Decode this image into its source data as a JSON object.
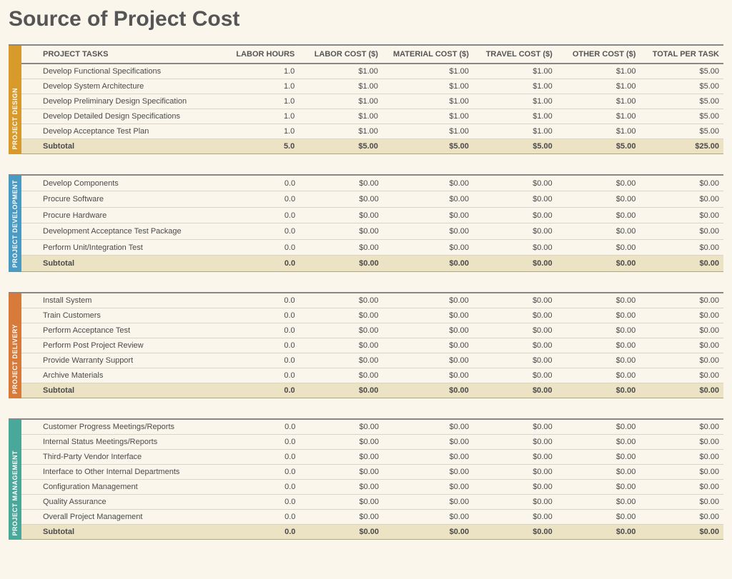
{
  "title": "Source of Project Cost",
  "columns": [
    "PROJECT TASKS",
    "LABOR HOURS",
    "LABOR COST ($)",
    "MATERIAL COST ($)",
    "TRAVEL COST ($)",
    "OTHER COST ($)",
    "TOTAL PER TASK"
  ],
  "colors": {
    "design": "#d89a2b",
    "development": "#4a9bc4",
    "delivery": "#d87a3a",
    "management": "#4aa89a",
    "background": "#faf6ec",
    "subtotal_bg": "#ece3c5",
    "header_border": "#888888",
    "row_border": "#d8d4c8"
  },
  "sections": [
    {
      "id": "design",
      "label": "PROJECT DESIGN",
      "rows": [
        {
          "task": "Develop Functional Specifications",
          "hours": "1.0",
          "labor": "$1.00",
          "material": "$1.00",
          "travel": "$1.00",
          "other": "$1.00",
          "total": "$5.00"
        },
        {
          "task": "Develop System Architecture",
          "hours": "1.0",
          "labor": "$1.00",
          "material": "$1.00",
          "travel": "$1.00",
          "other": "$1.00",
          "total": "$5.00"
        },
        {
          "task": "Develop Preliminary Design Specification",
          "hours": "1.0",
          "labor": "$1.00",
          "material": "$1.00",
          "travel": "$1.00",
          "other": "$1.00",
          "total": "$5.00"
        },
        {
          "task": "Develop Detailed Design Specifications",
          "hours": "1.0",
          "labor": "$1.00",
          "material": "$1.00",
          "travel": "$1.00",
          "other": "$1.00",
          "total": "$5.00"
        },
        {
          "task": "Develop Acceptance Test Plan",
          "hours": "1.0",
          "labor": "$1.00",
          "material": "$1.00",
          "travel": "$1.00",
          "other": "$1.00",
          "total": "$5.00"
        }
      ],
      "subtotal": {
        "task": "Subtotal",
        "hours": "5.0",
        "labor": "$5.00",
        "material": "$5.00",
        "travel": "$5.00",
        "other": "$5.00",
        "total": "$25.00"
      }
    },
    {
      "id": "development",
      "label": "PROJECT DEVELOPMENT",
      "rows": [
        {
          "task": "Develop Components",
          "hours": "0.0",
          "labor": "$0.00",
          "material": "$0.00",
          "travel": "$0.00",
          "other": "$0.00",
          "total": "$0.00"
        },
        {
          "task": "Procure Software",
          "hours": "0.0",
          "labor": "$0.00",
          "material": "$0.00",
          "travel": "$0.00",
          "other": "$0.00",
          "total": "$0.00"
        },
        {
          "task": "Procure Hardware",
          "hours": "0.0",
          "labor": "$0.00",
          "material": "$0.00",
          "travel": "$0.00",
          "other": "$0.00",
          "total": "$0.00"
        },
        {
          "task": "Development Acceptance Test Package",
          "hours": "0.0",
          "labor": "$0.00",
          "material": "$0.00",
          "travel": "$0.00",
          "other": "$0.00",
          "total": "$0.00"
        },
        {
          "task": "Perform Unit/Integration Test",
          "hours": "0.0",
          "labor": "$0.00",
          "material": "$0.00",
          "travel": "$0.00",
          "other": "$0.00",
          "total": "$0.00"
        }
      ],
      "subtotal": {
        "task": "Subtotal",
        "hours": "0.0",
        "labor": "$0.00",
        "material": "$0.00",
        "travel": "$0.00",
        "other": "$0.00",
        "total": "$0.00"
      }
    },
    {
      "id": "delivery",
      "label": "PROJECT DELIVERY",
      "rows": [
        {
          "task": "Install System",
          "hours": "0.0",
          "labor": "$0.00",
          "material": "$0.00",
          "travel": "$0.00",
          "other": "$0.00",
          "total": "$0.00"
        },
        {
          "task": "Train Customers",
          "hours": "0.0",
          "labor": "$0.00",
          "material": "$0.00",
          "travel": "$0.00",
          "other": "$0.00",
          "total": "$0.00"
        },
        {
          "task": "Perform Acceptance Test",
          "hours": "0.0",
          "labor": "$0.00",
          "material": "$0.00",
          "travel": "$0.00",
          "other": "$0.00",
          "total": "$0.00"
        },
        {
          "task": "Perform Post Project Review",
          "hours": "0.0",
          "labor": "$0.00",
          "material": "$0.00",
          "travel": "$0.00",
          "other": "$0.00",
          "total": "$0.00"
        },
        {
          "task": "Provide Warranty Support",
          "hours": "0.0",
          "labor": "$0.00",
          "material": "$0.00",
          "travel": "$0.00",
          "other": "$0.00",
          "total": "$0.00"
        },
        {
          "task": "Archive Materials",
          "hours": "0.0",
          "labor": "$0.00",
          "material": "$0.00",
          "travel": "$0.00",
          "other": "$0.00",
          "total": "$0.00"
        }
      ],
      "subtotal": {
        "task": "Subtotal",
        "hours": "0.0",
        "labor": "$0.00",
        "material": "$0.00",
        "travel": "$0.00",
        "other": "$0.00",
        "total": "$0.00"
      }
    },
    {
      "id": "management",
      "label": "PROJECT MANAGEMENT",
      "rows": [
        {
          "task": "Customer Progress Meetings/Reports",
          "hours": "0.0",
          "labor": "$0.00",
          "material": "$0.00",
          "travel": "$0.00",
          "other": "$0.00",
          "total": "$0.00"
        },
        {
          "task": "Internal Status Meetings/Reports",
          "hours": "0.0",
          "labor": "$0.00",
          "material": "$0.00",
          "travel": "$0.00",
          "other": "$0.00",
          "total": "$0.00"
        },
        {
          "task": "Third-Party Vendor Interface",
          "hours": "0.0",
          "labor": "$0.00",
          "material": "$0.00",
          "travel": "$0.00",
          "other": "$0.00",
          "total": "$0.00"
        },
        {
          "task": "Interface to Other Internal Departments",
          "hours": "0.0",
          "labor": "$0.00",
          "material": "$0.00",
          "travel": "$0.00",
          "other": "$0.00",
          "total": "$0.00"
        },
        {
          "task": "Configuration Management",
          "hours": "0.0",
          "labor": "$0.00",
          "material": "$0.00",
          "travel": "$0.00",
          "other": "$0.00",
          "total": "$0.00"
        },
        {
          "task": "Quality Assurance",
          "hours": "0.0",
          "labor": "$0.00",
          "material": "$0.00",
          "travel": "$0.00",
          "other": "$0.00",
          "total": "$0.00"
        },
        {
          "task": "Overall Project Management",
          "hours": "0.0",
          "labor": "$0.00",
          "material": "$0.00",
          "travel": "$0.00",
          "other": "$0.00",
          "total": "$0.00"
        }
      ],
      "subtotal": {
        "task": "Subtotal",
        "hours": "0.0",
        "labor": "$0.00",
        "material": "$0.00",
        "travel": "$0.00",
        "other": "$0.00",
        "total": "$0.00"
      }
    }
  ]
}
